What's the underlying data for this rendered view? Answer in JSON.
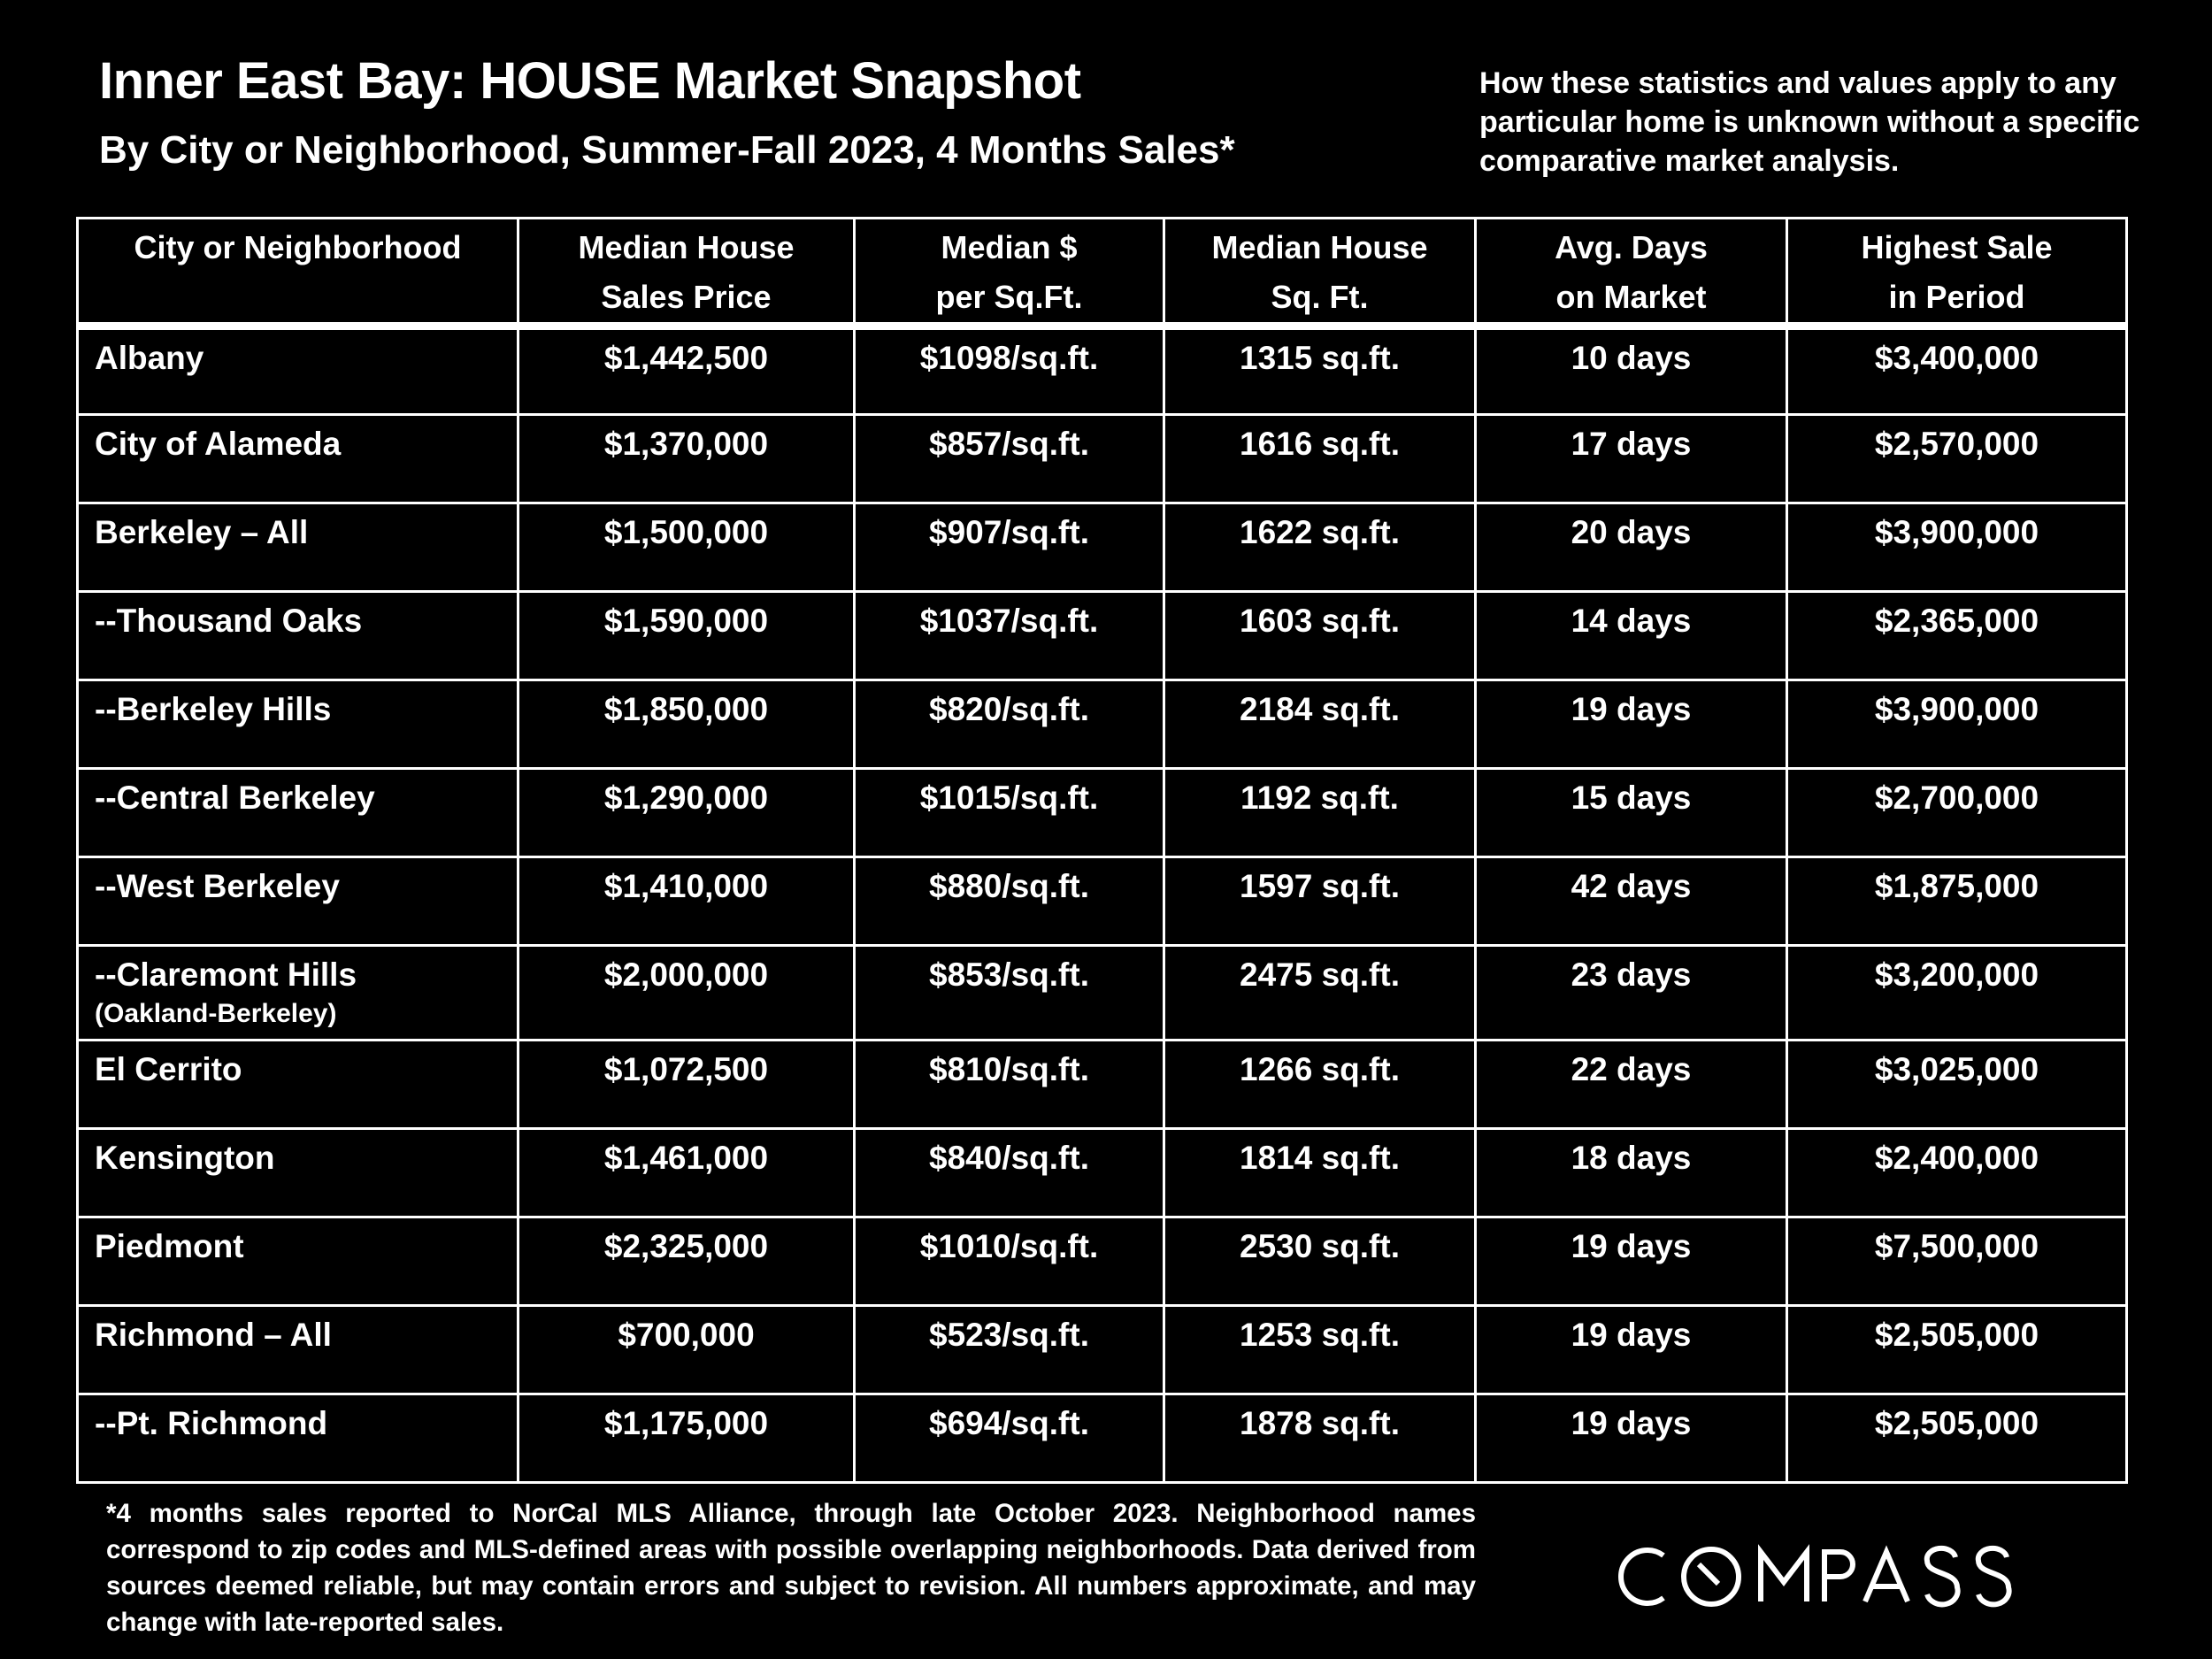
{
  "title": "Inner East Bay: HOUSE Market Snapshot",
  "subtitle": "By City or Neighborhood, Summer-Fall 2023, 4 Months Sales*",
  "disclaimer_top": "How these statistics and values apply to any particular home is unknown without a specific comparative market analysis.",
  "table": {
    "headers": [
      {
        "line1": "City or Neighborhood",
        "line2": ""
      },
      {
        "line1": "Median House",
        "line2": "Sales Price"
      },
      {
        "line1": "Median $",
        "line2": "per Sq.Ft."
      },
      {
        "line1": "Median House",
        "line2": "Sq. Ft."
      },
      {
        "line1": "Avg. Days",
        "line2": "on Market"
      },
      {
        "line1": "Highest Sale",
        "line2": "in Period"
      }
    ],
    "rows": [
      {
        "city": "Albany",
        "sub": "",
        "price": "$1,442,500",
        "ppsf": "$1098/sq.ft.",
        "sqft": "1315 sq.ft.",
        "days": "10 days",
        "high": "$3,400,000"
      },
      {
        "city": "City of Alameda",
        "sub": "",
        "price": "$1,370,000",
        "ppsf": "$857/sq.ft.",
        "sqft": "1616 sq.ft.",
        "days": "17 days",
        "high": "$2,570,000"
      },
      {
        "city": "Berkeley – All",
        "sub": "",
        "price": "$1,500,000",
        "ppsf": "$907/sq.ft.",
        "sqft": "1622 sq.ft.",
        "days": "20 days",
        "high": "$3,900,000"
      },
      {
        "city": "--Thousand Oaks",
        "sub": "",
        "price": "$1,590,000",
        "ppsf": "$1037/sq.ft.",
        "sqft": "1603 sq.ft.",
        "days": "14 days",
        "high": "$2,365,000"
      },
      {
        "city": "--Berkeley Hills",
        "sub": "",
        "price": "$1,850,000",
        "ppsf": "$820/sq.ft.",
        "sqft": "2184 sq.ft.",
        "days": "19 days",
        "high": "$3,900,000"
      },
      {
        "city": "--Central Berkeley",
        "sub": "",
        "price": "$1,290,000",
        "ppsf": "$1015/sq.ft.",
        "sqft": "1192 sq.ft.",
        "days": "15 days",
        "high": "$2,700,000"
      },
      {
        "city": "--West Berkeley",
        "sub": "",
        "price": "$1,410,000",
        "ppsf": "$880/sq.ft.",
        "sqft": "1597 sq.ft.",
        "days": "42 days",
        "high": "$1,875,000"
      },
      {
        "city": "--Claremont Hills",
        "sub": "(Oakland-Berkeley)",
        "price": "$2,000,000",
        "ppsf": "$853/sq.ft.",
        "sqft": "2475 sq.ft.",
        "days": "23 days",
        "high": "$3,200,000"
      },
      {
        "city": "El Cerrito",
        "sub": "",
        "price": "$1,072,500",
        "ppsf": "$810/sq.ft.",
        "sqft": "1266 sq.ft.",
        "days": "22 days",
        "high": "$3,025,000"
      },
      {
        "city": "Kensington",
        "sub": "",
        "price": "$1,461,000",
        "ppsf": "$840/sq.ft.",
        "sqft": "1814 sq.ft.",
        "days": "18 days",
        "high": "$2,400,000"
      },
      {
        "city": "Piedmont",
        "sub": "",
        "price": "$2,325,000",
        "ppsf": "$1010/sq.ft.",
        "sqft": "2530 sq.ft.",
        "days": "19 days",
        "high": "$7,500,000"
      },
      {
        "city": "Richmond – All",
        "sub": "",
        "price": "$700,000",
        "ppsf": "$523/sq.ft.",
        "sqft": "1253 sq.ft.",
        "days": "19 days",
        "high": "$2,505,000"
      },
      {
        "city": "--Pt. Richmond",
        "sub": "",
        "price": "$1,175,000",
        "ppsf": "$694/sq.ft.",
        "sqft": "1878 sq.ft.",
        "days": "19 days",
        "high": "$2,505,000"
      }
    ]
  },
  "footnote": "*4 months sales reported to NorCal MLS Alliance, through late October 2023. Neighborhood names correspond to zip codes and MLS-defined areas with possible overlapping neighborhoods. Data derived from sources deemed reliable, but may contain errors and subject to revision. All numbers approximate, and may change with late-reported sales.",
  "logo": {
    "text": "COMPASS"
  }
}
